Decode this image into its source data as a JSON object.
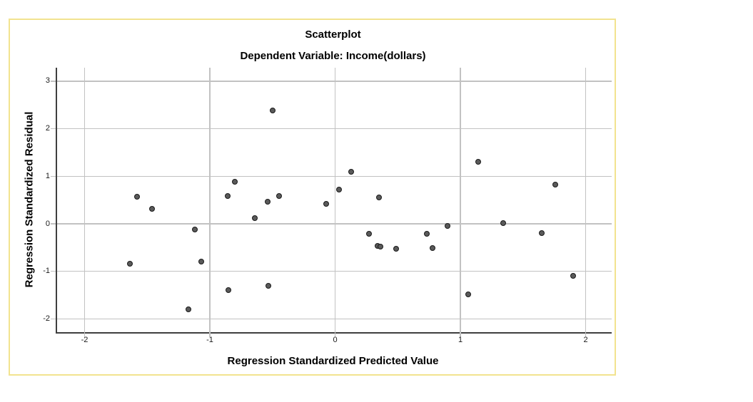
{
  "colors": {
    "frame_border": "#f2e38f",
    "axis": "#3f3f3f",
    "grid": "#c2c2c2",
    "marker_fill": "#5a5a5a",
    "marker_stroke": "#1a1a1a",
    "background": "#ffffff"
  },
  "chart_data": {
    "type": "scatter",
    "title": "Scatterplot",
    "subtitle": "Dependent Variable: Income(dollars)",
    "xlabel": "Regression Standardized Predicted Value",
    "ylabel": "Regression Standardized Residual",
    "x_tick_labels": [
      "-2",
      "-1",
      "0",
      "1",
      "2"
    ],
    "y_tick_labels": [
      "3",
      "2",
      "1",
      "0",
      "-1",
      "-2"
    ],
    "xlim": [
      -2.22,
      2.21
    ],
    "ylim": [
      -2.28,
      3.28
    ],
    "grid": true,
    "legend": "none",
    "points": [
      [
        -1.64,
        -0.84
      ],
      [
        -1.58,
        0.57
      ],
      [
        -1.46,
        0.31
      ],
      [
        -1.17,
        -1.8
      ],
      [
        -1.12,
        -0.12
      ],
      [
        -1.07,
        -0.8
      ],
      [
        -0.86,
        0.59
      ],
      [
        -0.85,
        -1.39
      ],
      [
        -0.8,
        0.88
      ],
      [
        -0.64,
        0.12
      ],
      [
        -0.54,
        0.46
      ],
      [
        -0.53,
        -1.3
      ],
      [
        -0.5,
        2.39
      ],
      [
        -0.45,
        0.58
      ],
      [
        -0.07,
        0.42
      ],
      [
        0.03,
        0.72
      ],
      [
        0.13,
        1.09
      ],
      [
        0.27,
        -0.21
      ],
      [
        0.34,
        -0.47
      ],
      [
        0.36,
        -0.48
      ],
      [
        0.35,
        0.55
      ],
      [
        0.49,
        -0.52
      ],
      [
        0.73,
        -0.21
      ],
      [
        0.78,
        -0.51
      ],
      [
        0.9,
        -0.05
      ],
      [
        1.06,
        -1.49
      ],
      [
        1.14,
        1.3
      ],
      [
        1.34,
        0.01
      ],
      [
        1.65,
        -0.2
      ],
      [
        1.76,
        0.83
      ],
      [
        1.9,
        -1.1
      ]
    ]
  }
}
